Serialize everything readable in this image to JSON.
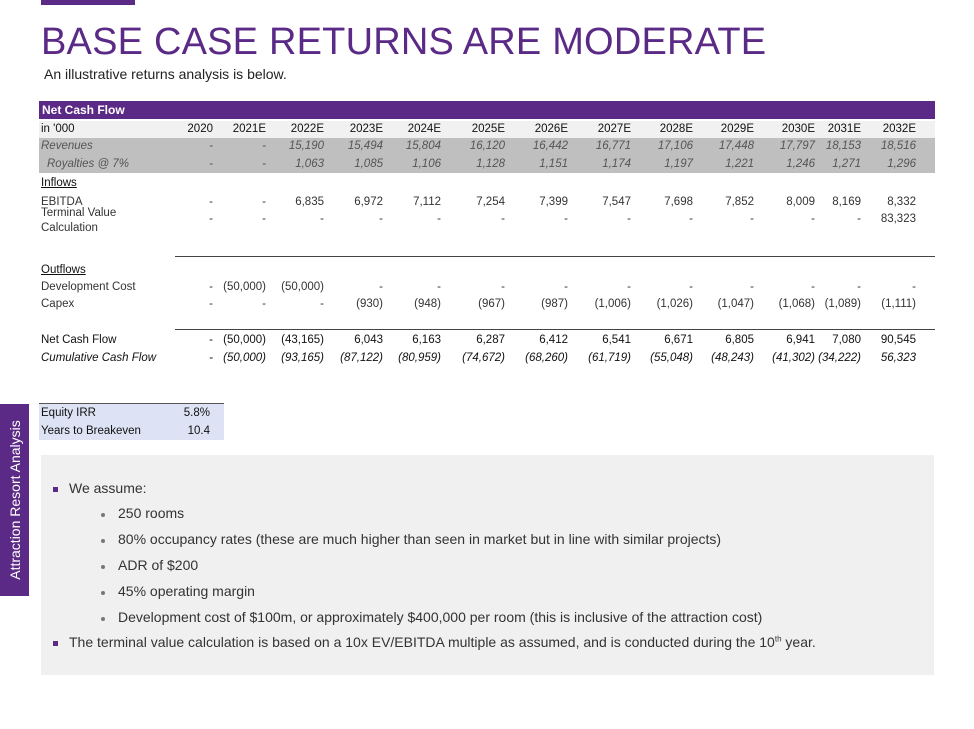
{
  "page": {
    "title": "BASE CASE RETURNS ARE MODERATE",
    "subtitle": "An illustrative returns analysis is below.",
    "side_tab": "Attraction Resort Analysis"
  },
  "table": {
    "header": "Net Cash Flow",
    "unit_label": "in '000",
    "years": [
      "2020",
      "2021E",
      "2022E",
      "2023E",
      "2024E",
      "2025E",
      "2026E",
      "2027E",
      "2028E",
      "2029E",
      "2030E",
      "2031E",
      "2032E"
    ],
    "rows": [
      {
        "label": "Revenues",
        "values": [
          "-",
          "-",
          "15,190",
          "15,494",
          "15,804",
          "16,120",
          "16,442",
          "16,771",
          "17,106",
          "17,448",
          "17,797",
          "18,153",
          "18,516"
        ]
      },
      {
        "label": "Royalties @ 7%",
        "values": [
          "-",
          "-",
          "1,063",
          "1,085",
          "1,106",
          "1,128",
          "1,151",
          "1,174",
          "1,197",
          "1,221",
          "1,246",
          "1,271",
          "1,296"
        ]
      },
      {
        "label": "Inflows"
      },
      {
        "label": "EBITDA",
        "values": [
          "-",
          "-",
          "6,835",
          "6,972",
          "7,112",
          "7,254",
          "7,399",
          "7,547",
          "7,698",
          "7,852",
          "8,009",
          "8,169",
          "8,332"
        ]
      },
      {
        "label": "Terminal Value",
        "label2": "Calculation",
        "values": [
          "-",
          "-",
          "-",
          "-",
          "-",
          "-",
          "-",
          "-",
          "-",
          "-",
          "-",
          "-",
          "83,323"
        ]
      },
      {
        "label": "Outflows"
      },
      {
        "label": "Development Cost",
        "values": [
          "-",
          "(50,000)",
          "(50,000)",
          "-",
          "-",
          "-",
          "-",
          "-",
          "-",
          "-",
          "-",
          "-",
          "-"
        ]
      },
      {
        "label": "Capex",
        "values": [
          "-",
          "-",
          "-",
          "(930)",
          "(948)",
          "(967)",
          "(987)",
          "(1,006)",
          "(1,026)",
          "(1,047)",
          "(1,068)",
          "(1,089)",
          "(1,111)"
        ]
      },
      {
        "label": "Net Cash Flow",
        "values": [
          "-",
          "(50,000)",
          "(43,165)",
          "6,043",
          "6,163",
          "6,287",
          "6,412",
          "6,541",
          "6,671",
          "6,805",
          "6,941",
          "7,080",
          "90,545"
        ]
      },
      {
        "label": "Cumulative Cash Flow",
        "values": [
          "-",
          "(50,000)",
          "(93,165)",
          "(87,122)",
          "(80,959)",
          "(74,672)",
          "(68,260)",
          "(61,719)",
          "(55,048)",
          "(48,243)",
          "(41,302)",
          "(34,222)",
          "56,323"
        ]
      }
    ]
  },
  "metrics": [
    {
      "label": "Equity IRR",
      "value": "5.8%"
    },
    {
      "label": "Years to Breakeven",
      "value": "10.4"
    }
  ],
  "notes": {
    "assume_label": "We assume:",
    "assumptions": [
      "250 rooms",
      "80% occupancy rates (these are much higher than seen in market but in line with similar projects)",
      "ADR of $200",
      "45% operating margin",
      "Development cost of $100m, or approximately $400,000 per room (this is inclusive of the attraction cost)"
    ],
    "terminal_pre": "The terminal value calculation is based on a 10x EV/EBITDA multiple as assumed, and is conducted during the 10",
    "terminal_sup": "th",
    "terminal_post": " year."
  },
  "colors": {
    "brand": "#5b2a86",
    "band_grey": "#bfbfbf",
    "metrics_bg": "#dde3f4",
    "notes_bg": "#f0f0f0"
  }
}
